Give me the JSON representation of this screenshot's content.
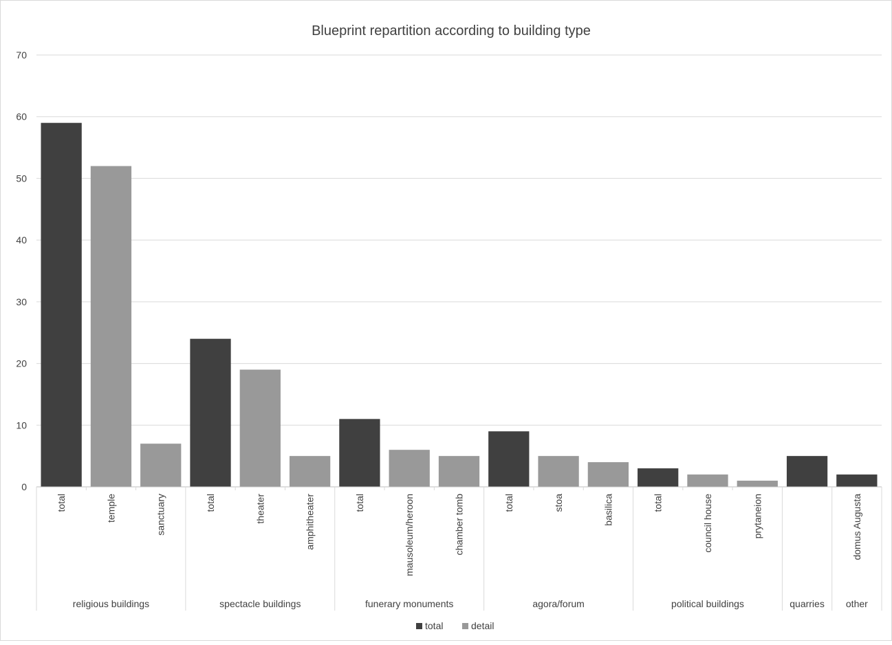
{
  "chart_data": {
    "type": "bar",
    "title": "Blueprint repartition according to building type",
    "xlabel": "",
    "ylabel": "",
    "ylim": [
      0,
      70
    ],
    "yticks": [
      0,
      10,
      20,
      30,
      40,
      50,
      60,
      70
    ],
    "grid": true,
    "legend_position": "bottom",
    "series": [
      {
        "name": "total",
        "color": "#404040"
      },
      {
        "name": "detail",
        "color": "#999999"
      }
    ],
    "groups": [
      {
        "label": "religious buildings",
        "bars": [
          {
            "label": "total",
            "value": 59,
            "series": "total"
          },
          {
            "label": "temple",
            "value": 52,
            "series": "detail"
          },
          {
            "label": "sanctuary",
            "value": 7,
            "series": "detail"
          }
        ]
      },
      {
        "label": "spectacle buildings",
        "bars": [
          {
            "label": "total",
            "value": 24,
            "series": "total"
          },
          {
            "label": "theater",
            "value": 19,
            "series": "detail"
          },
          {
            "label": "amphitheater",
            "value": 5,
            "series": "detail"
          }
        ]
      },
      {
        "label": "funerary monuments",
        "bars": [
          {
            "label": "total",
            "value": 11,
            "series": "total"
          },
          {
            "label": "mausoleum/heroon",
            "value": 6,
            "series": "detail"
          },
          {
            "label": "chamber tomb",
            "value": 5,
            "series": "detail"
          }
        ]
      },
      {
        "label": "agora/forum",
        "bars": [
          {
            "label": "total",
            "value": 9,
            "series": "total"
          },
          {
            "label": "stoa",
            "value": 5,
            "series": "detail"
          },
          {
            "label": "basilica",
            "value": 4,
            "series": "detail"
          }
        ]
      },
      {
        "label": "political buildings",
        "bars": [
          {
            "label": "total",
            "value": 3,
            "series": "total"
          },
          {
            "label": "council house",
            "value": 2,
            "series": "detail"
          },
          {
            "label": "prytaneion",
            "value": 1,
            "series": "detail"
          }
        ]
      },
      {
        "label": "quarries",
        "bars": [
          {
            "label": "",
            "value": 5,
            "series": "total"
          }
        ]
      },
      {
        "label": "other",
        "bars": [
          {
            "label": "domus Augusta",
            "value": 2,
            "series": "total"
          }
        ]
      }
    ]
  }
}
